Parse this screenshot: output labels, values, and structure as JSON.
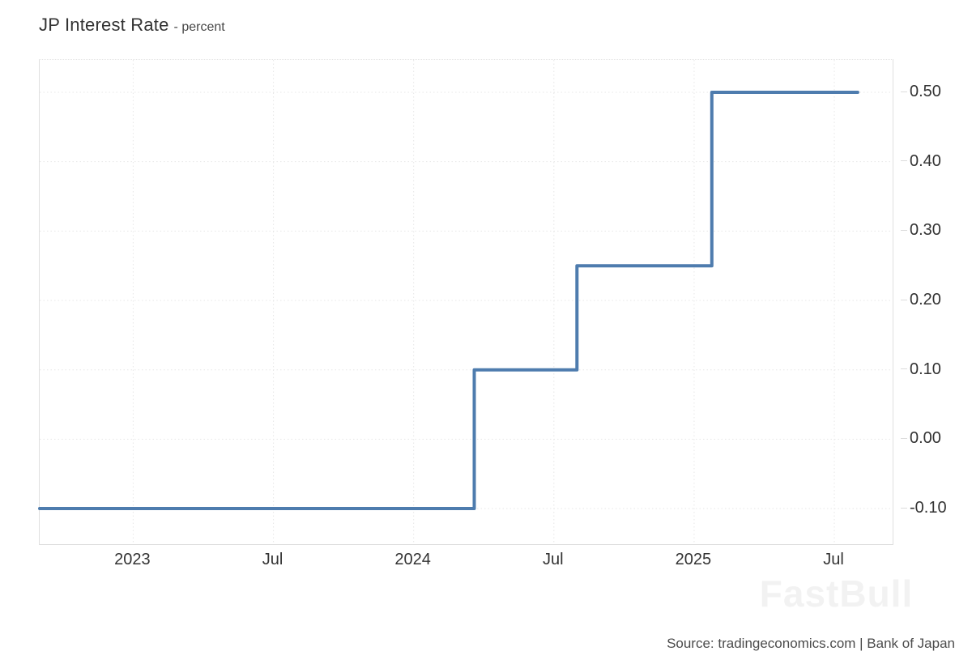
{
  "title": {
    "main": "JP Interest Rate",
    "sub": "- percent"
  },
  "source": "Source: tradingeconomics.com | Bank of Japan",
  "watermark": "FastBull",
  "colors": {
    "line": "#4e7cae",
    "grid": "#e7e7e7",
    "axis_border": "#e0e0e0",
    "text": "#333333",
    "source_text": "#4b4b4b",
    "watermark": "#f2f2f2"
  },
  "chart_data": {
    "type": "line",
    "line_style": "step-after",
    "title": "JP Interest Rate - percent",
    "xlabel": "",
    "ylabel": "percent",
    "grid": true,
    "legend": false,
    "xlim": [
      "2022-09-01",
      "2025-09-16"
    ],
    "ylim": [
      -0.1513,
      0.5467
    ],
    "x_ticks": [
      {
        "date": "2023-01-01",
        "label": "2023"
      },
      {
        "date": "2023-07-01",
        "label": "Jul"
      },
      {
        "date": "2024-01-01",
        "label": "2024"
      },
      {
        "date": "2024-07-01",
        "label": "Jul"
      },
      {
        "date": "2025-01-01",
        "label": "2025"
      },
      {
        "date": "2025-07-01",
        "label": "Jul"
      }
    ],
    "y_ticks": [
      {
        "value": 0.5,
        "label": "0.50"
      },
      {
        "value": 0.4,
        "label": "0.40"
      },
      {
        "value": 0.3,
        "label": "0.30"
      },
      {
        "value": 0.2,
        "label": "0.20"
      },
      {
        "value": 0.1,
        "label": "0.10"
      },
      {
        "value": 0.0,
        "label": "0.00"
      },
      {
        "value": -0.1,
        "label": "-0.10"
      }
    ],
    "series": [
      {
        "name": "JP Interest Rate",
        "points": [
          {
            "date": "2022-09-01",
            "value": -0.1
          },
          {
            "date": "2024-03-19",
            "value": 0.1
          },
          {
            "date": "2024-07-31",
            "value": 0.25
          },
          {
            "date": "2025-01-24",
            "value": 0.5
          },
          {
            "date": "2025-08-01",
            "value": 0.5
          }
        ]
      }
    ]
  }
}
